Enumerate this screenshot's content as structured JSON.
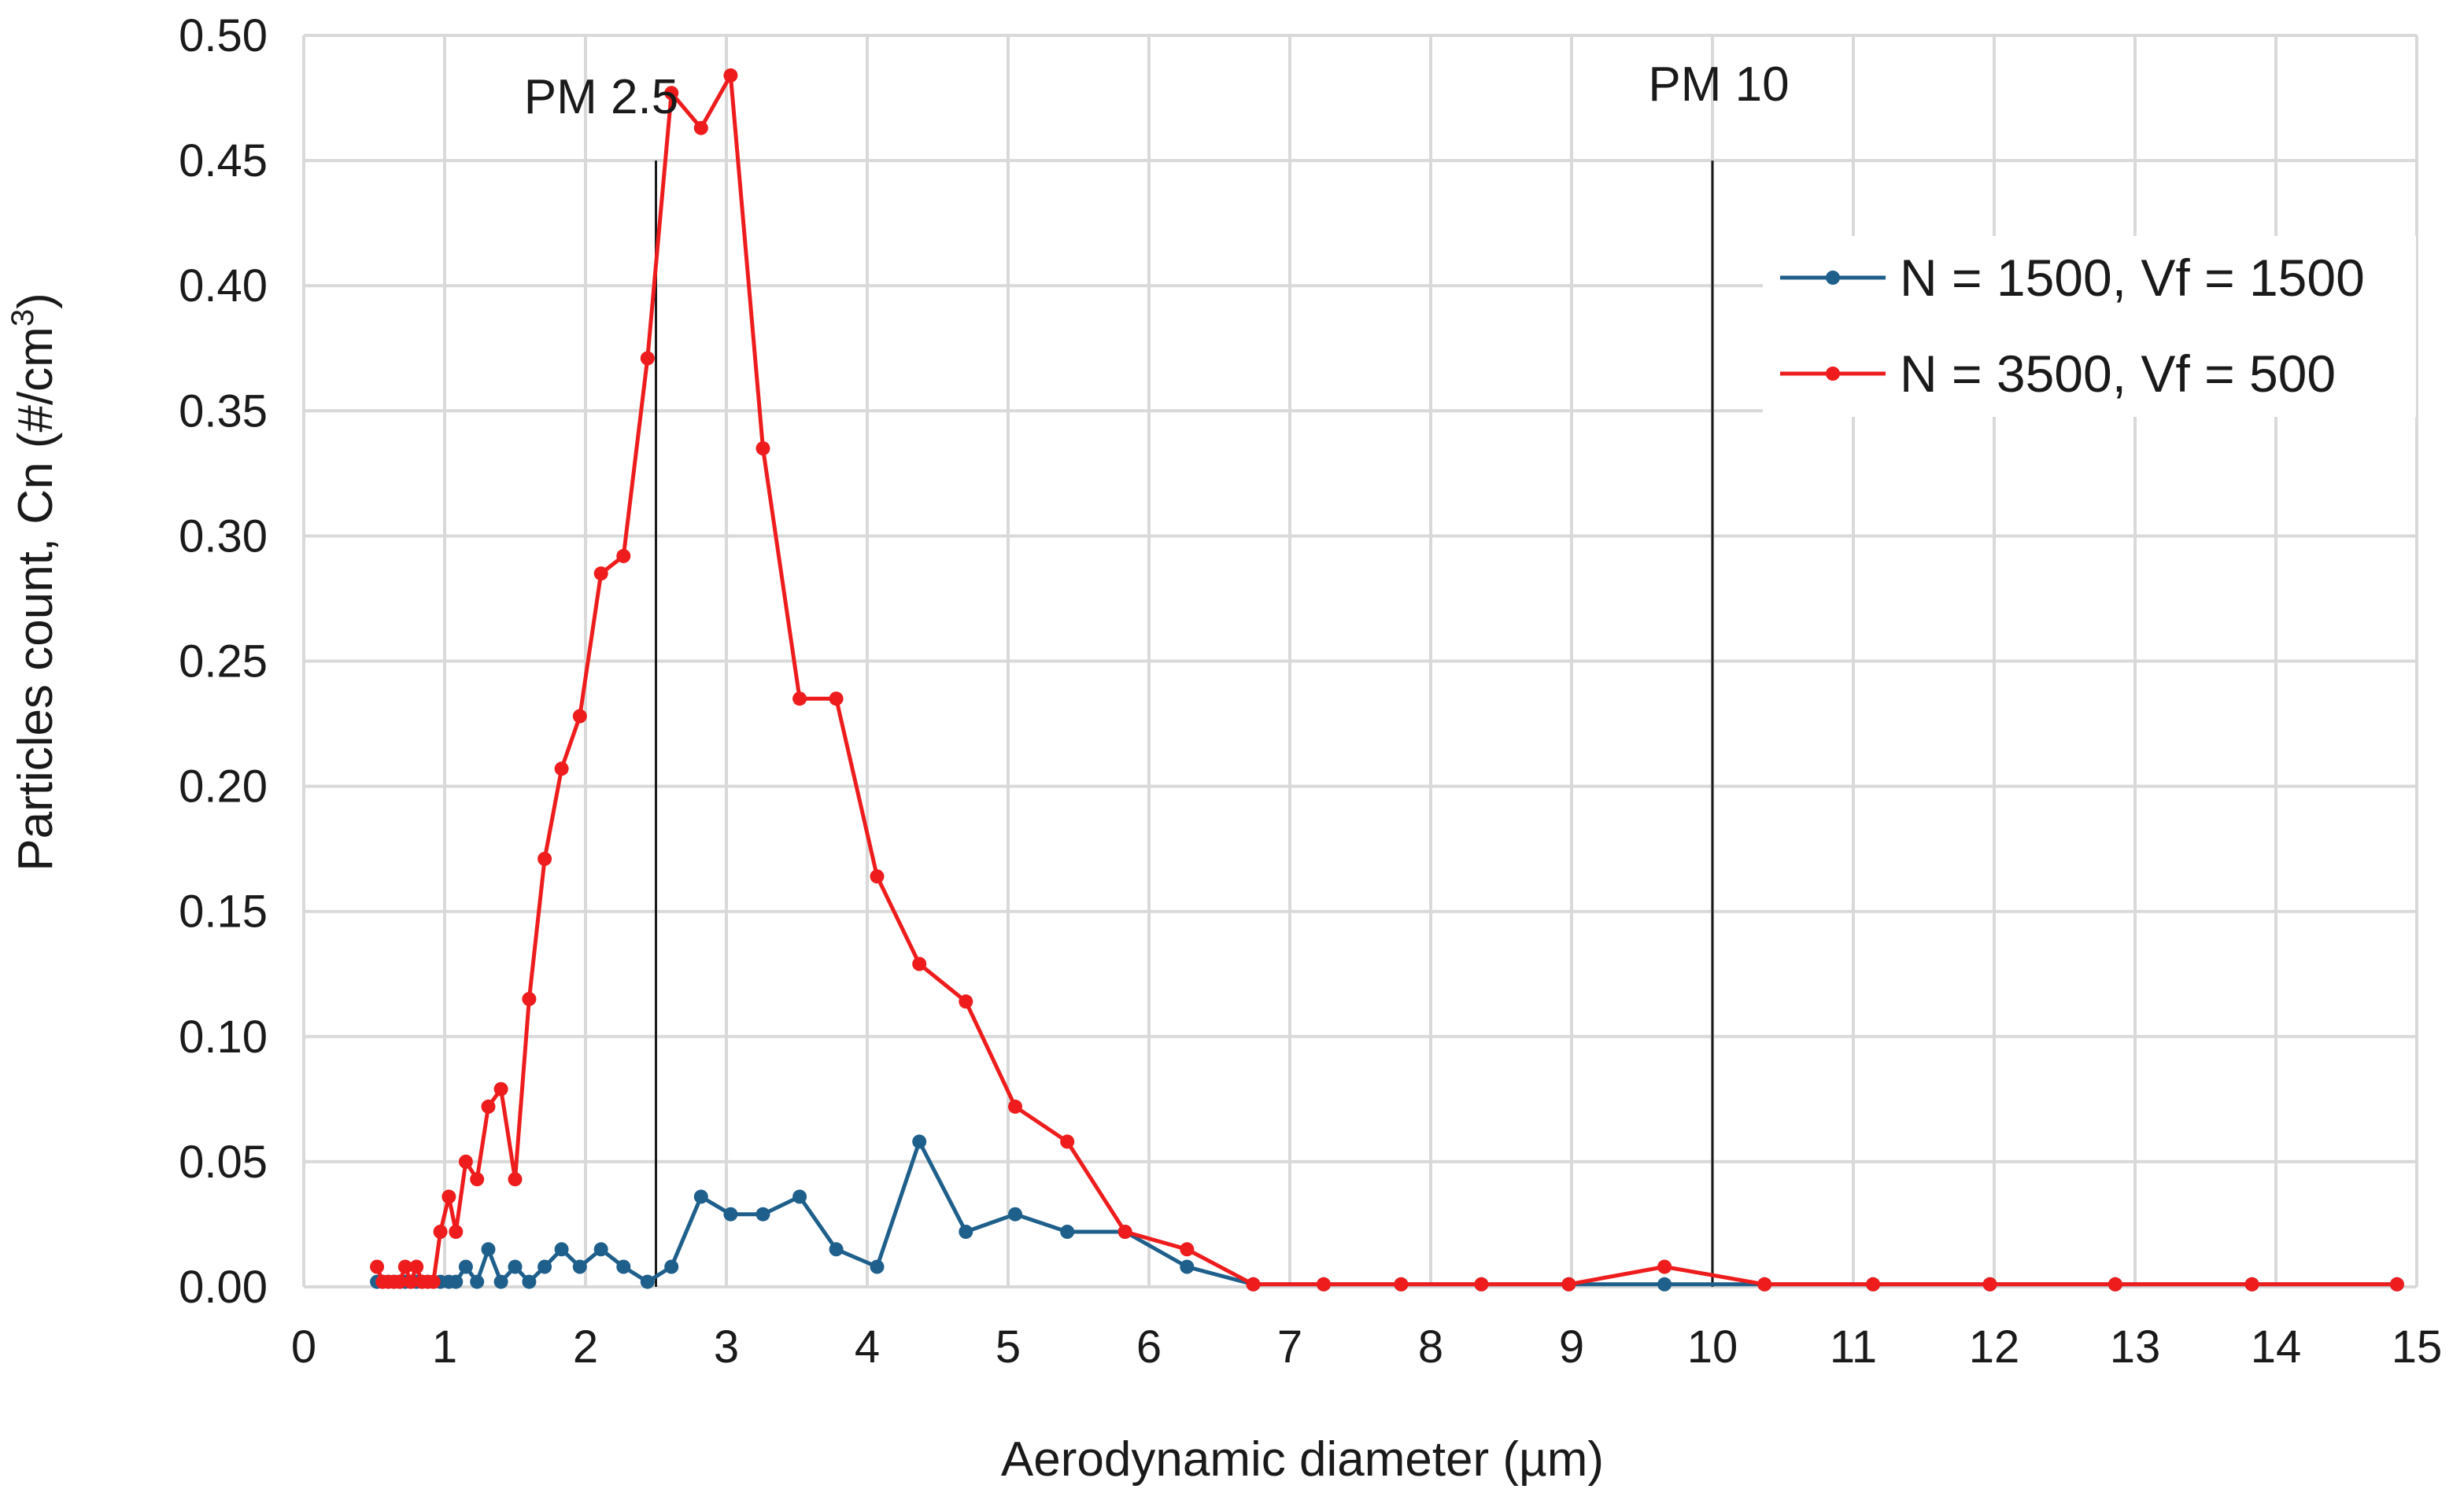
{
  "chart_data": {
    "type": "line",
    "title": "",
    "xlabel": "Aerodynamic diameter (µm)",
    "ylabel": "Particles count, Cn (#/cm",
    "ylabel_sup": "3",
    "ylabel_end": ")",
    "xlim": [
      0,
      15
    ],
    "ylim": [
      0,
      0.5
    ],
    "x_ticks": [
      "0",
      "1",
      "2",
      "3",
      "4",
      "5",
      "6",
      "7",
      "8",
      "9",
      "10",
      "11",
      "12",
      "13",
      "14",
      "15"
    ],
    "y_ticks": [
      "0.00",
      "0.05",
      "0.10",
      "0.15",
      "0.20",
      "0.25",
      "0.30",
      "0.35",
      "0.40",
      "0.45",
      "0.50"
    ],
    "grid": true,
    "legend_position": "top-right",
    "annotations": [
      {
        "label": "PM 2.5",
        "x": 2.5
      },
      {
        "label": "PM 10",
        "x": 10
      }
    ],
    "series": [
      {
        "name": "N = 1500, Vf = 1500",
        "color": "#1f5f8b",
        "x": [
          0.52,
          0.56,
          0.6,
          0.64,
          0.68,
          0.72,
          0.76,
          0.8,
          0.84,
          0.88,
          0.92,
          0.97,
          1.03,
          1.08,
          1.15,
          1.23,
          1.31,
          1.4,
          1.5,
          1.6,
          1.71,
          1.83,
          1.96,
          2.11,
          2.27,
          2.44,
          2.61,
          2.82,
          3.03,
          3.26,
          3.52,
          3.78,
          4.07,
          4.37,
          4.7,
          5.05,
          5.42,
          5.83,
          6.27,
          6.74,
          7.24,
          7.79,
          8.36,
          8.98,
          9.66,
          10.37,
          11.14,
          11.97,
          12.86,
          13.83,
          14.86
        ],
        "y": [
          0.002,
          0.002,
          0.002,
          0.002,
          0.002,
          0.002,
          0.002,
          0.002,
          0.002,
          0.002,
          0.002,
          0.002,
          0.002,
          0.002,
          0.008,
          0.002,
          0.015,
          0.002,
          0.008,
          0.002,
          0.008,
          0.015,
          0.008,
          0.015,
          0.008,
          0.002,
          0.008,
          0.036,
          0.029,
          0.029,
          0.036,
          0.015,
          0.008,
          0.058,
          0.022,
          0.029,
          0.022,
          0.022,
          0.008,
          0.001,
          0.001,
          0.001,
          0.001,
          0.001,
          0.001,
          0.001,
          0.001,
          0.001,
          0.001,
          0.001,
          0.001
        ]
      },
      {
        "name": "N = 3500, Vf = 500",
        "color": "#ee1c1c",
        "x": [
          0.52,
          0.56,
          0.6,
          0.64,
          0.68,
          0.72,
          0.76,
          0.8,
          0.84,
          0.88,
          0.92,
          0.97,
          1.03,
          1.08,
          1.15,
          1.23,
          1.31,
          1.4,
          1.5,
          1.6,
          1.71,
          1.83,
          1.96,
          2.11,
          2.27,
          2.44,
          2.61,
          2.82,
          3.03,
          3.26,
          3.52,
          3.78,
          4.07,
          4.37,
          4.7,
          5.05,
          5.42,
          5.83,
          6.27,
          6.74,
          7.24,
          7.79,
          8.36,
          8.98,
          9.66,
          10.37,
          11.14,
          11.97,
          12.86,
          13.83,
          14.86
        ],
        "y": [
          0.008,
          0.002,
          0.002,
          0.002,
          0.002,
          0.008,
          0.002,
          0.008,
          0.002,
          0.002,
          0.002,
          0.022,
          0.036,
          0.022,
          0.05,
          0.043,
          0.072,
          0.079,
          0.043,
          0.115,
          0.171,
          0.207,
          0.228,
          0.285,
          0.292,
          0.371,
          0.477,
          0.463,
          0.484,
          0.335,
          0.235,
          0.235,
          0.164,
          0.129,
          0.114,
          0.072,
          0.058,
          0.022,
          0.015,
          0.001,
          0.001,
          0.001,
          0.001,
          0.001,
          0.008,
          0.001,
          0.001,
          0.001,
          0.001,
          0.001,
          0.001
        ]
      }
    ]
  }
}
